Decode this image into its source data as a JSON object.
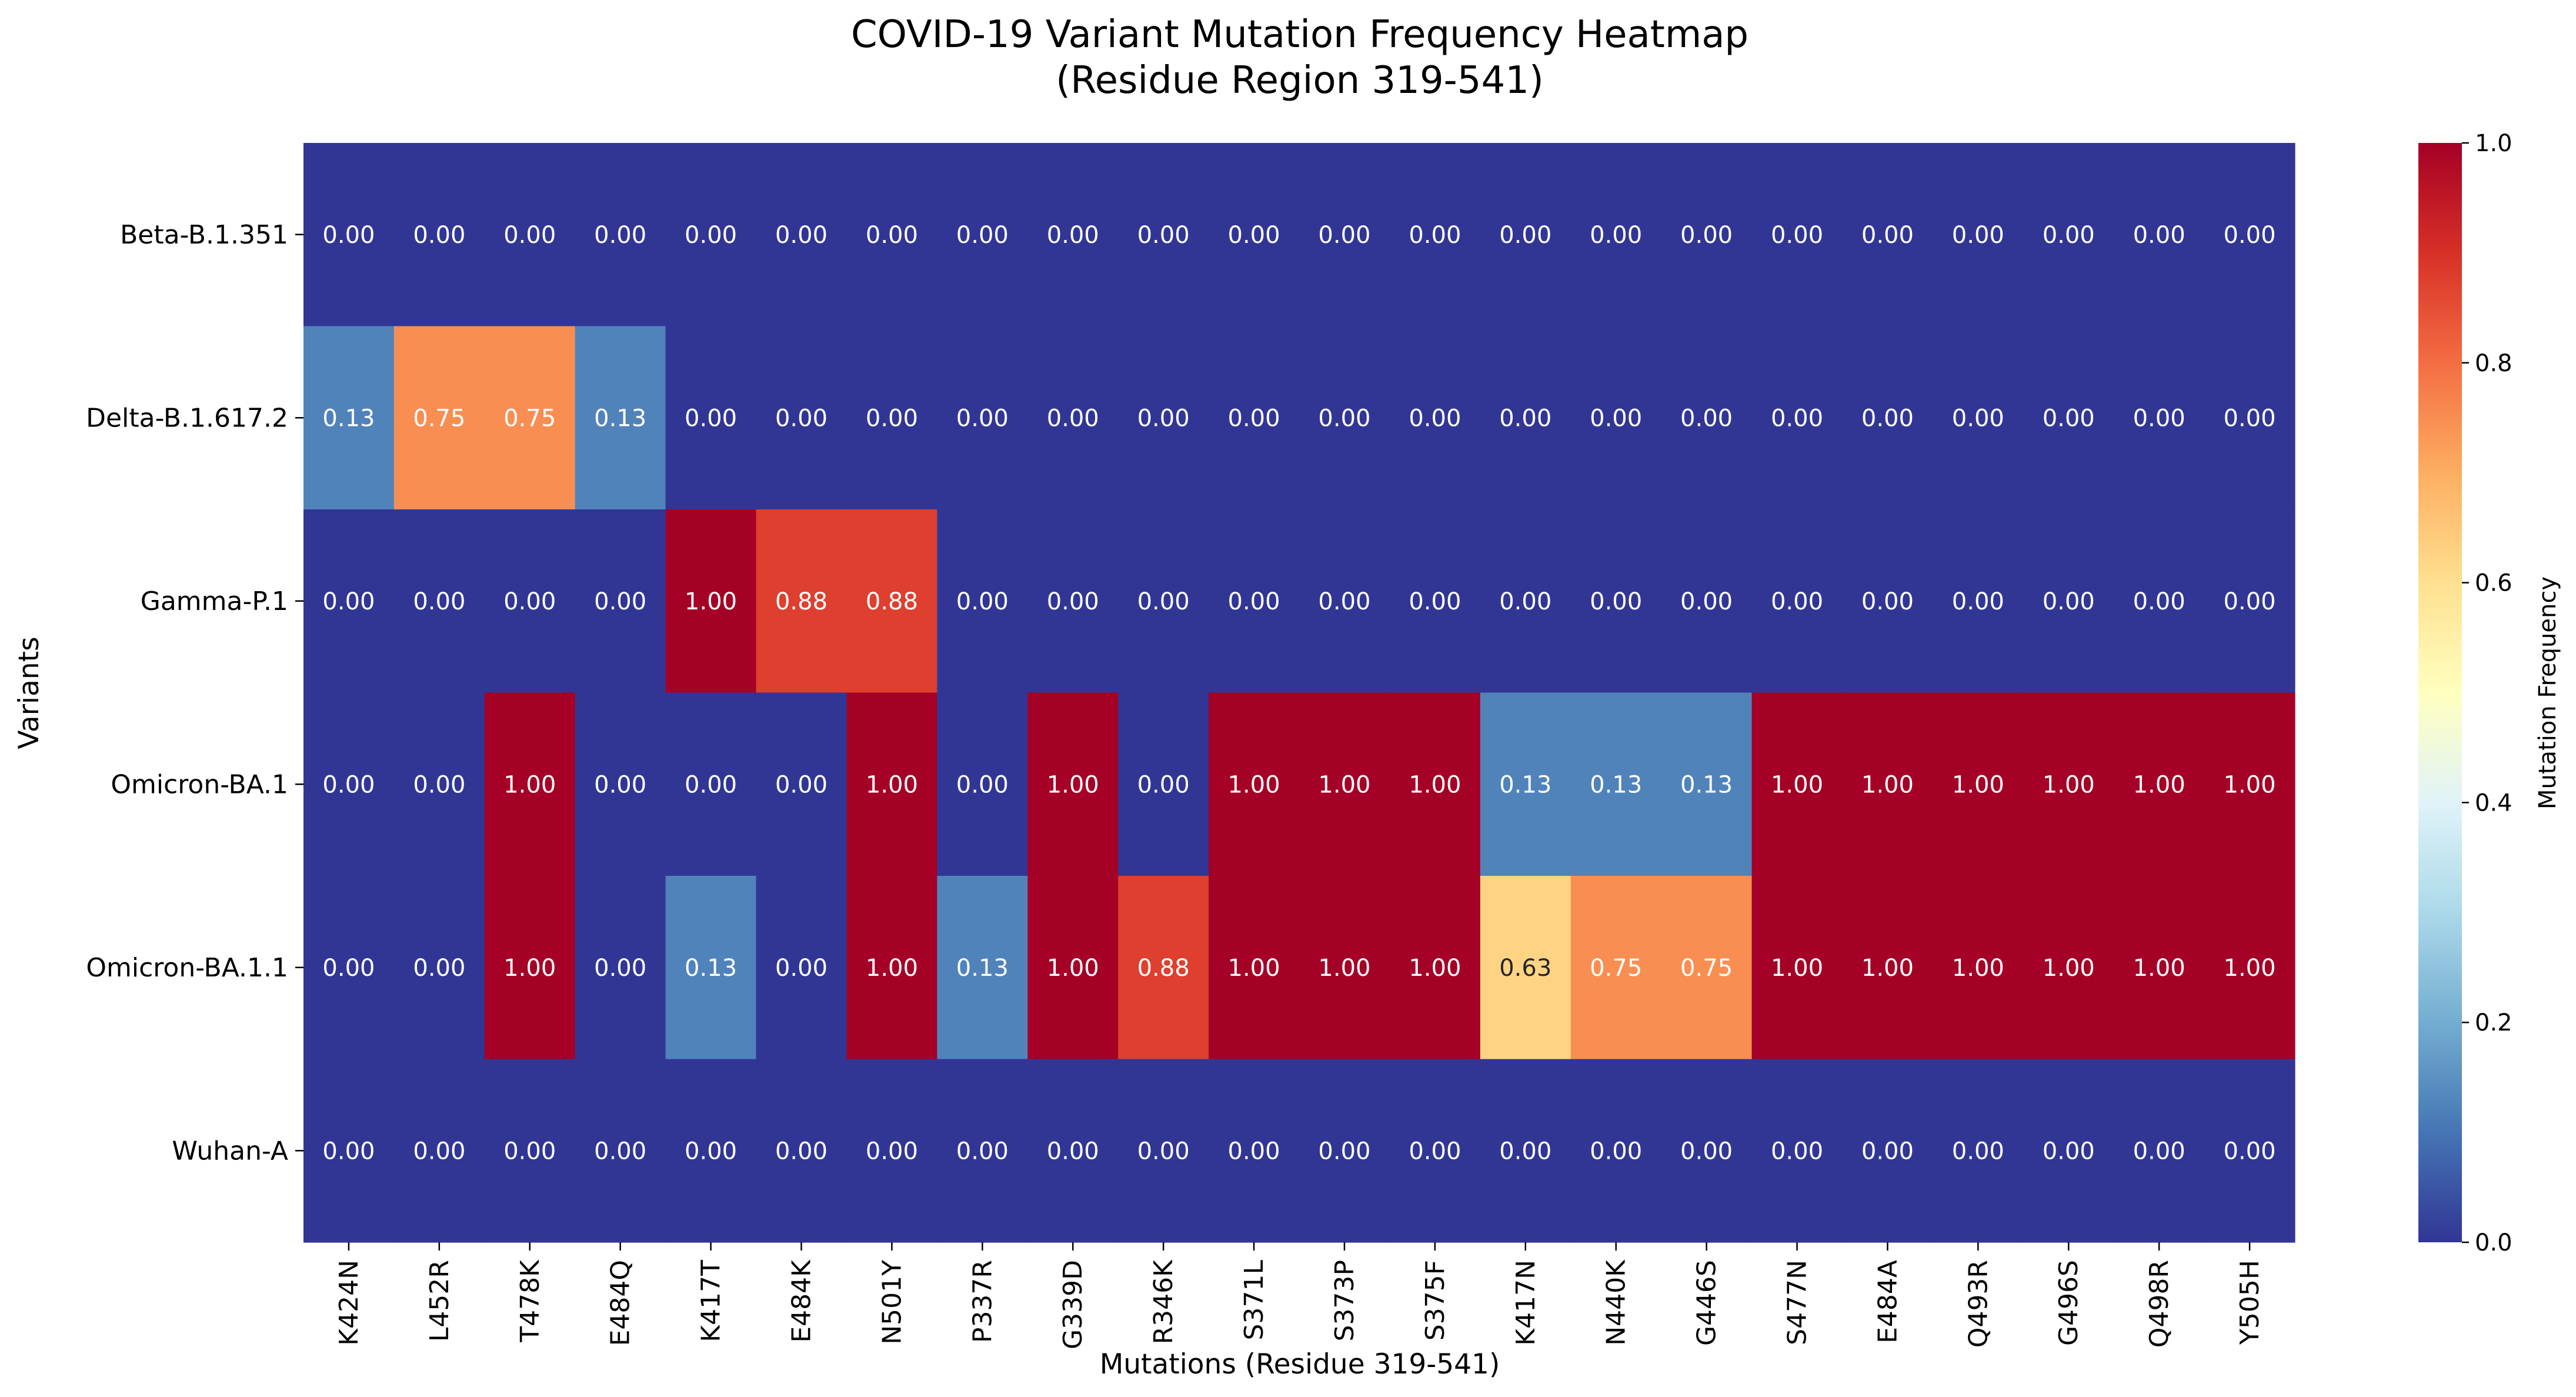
{
  "chart_data": {
    "type": "heatmap",
    "title": "COVID-19 Variant Mutation Frequency Heatmap",
    "subtitle": "(Residue Region 319-541)",
    "xlabel": "Mutations (Residue 319-541)",
    "ylabel": "Variants",
    "colorbar_label": "Mutation Frequency",
    "colormap": "RdYlBu_r",
    "vmin": 0.0,
    "vmax": 1.0,
    "colorbar_ticks": [
      "0.0",
      "0.2",
      "0.4",
      "0.6",
      "0.8",
      "1.0"
    ],
    "columns": [
      "K424N",
      "L452R",
      "T478K",
      "E484Q",
      "K417T",
      "E484K",
      "N501Y",
      "P337R",
      "G339D",
      "R346K",
      "S371L",
      "S373P",
      "S375F",
      "K417N",
      "N440K",
      "G446S",
      "S477N",
      "E484A",
      "Q493R",
      "G496S",
      "Q498R",
      "Y505H"
    ],
    "rows": [
      "Beta-B.1.351",
      "Delta-B.1.617.2",
      "Gamma-P.1",
      "Omicron-BA.1",
      "Omicron-BA.1.1",
      "Wuhan-A"
    ],
    "values": [
      [
        0,
        0,
        0,
        0,
        0,
        0,
        0,
        0,
        0,
        0,
        0,
        0,
        0,
        0,
        0,
        0,
        0,
        0,
        0,
        0,
        0,
        0
      ],
      [
        0.125,
        0.75,
        0.75,
        0.125,
        0,
        0,
        0,
        0,
        0,
        0,
        0,
        0,
        0,
        0,
        0,
        0,
        0,
        0,
        0,
        0,
        0,
        0
      ],
      [
        0,
        0,
        0,
        0,
        1.0,
        0.875,
        0.875,
        0,
        0,
        0,
        0,
        0,
        0,
        0,
        0,
        0,
        0,
        0,
        0,
        0,
        0,
        0
      ],
      [
        0,
        0,
        1.0,
        0,
        0,
        0,
        1.0,
        0,
        1.0,
        0,
        1.0,
        1.0,
        1.0,
        0.125,
        0.125,
        0.125,
        1.0,
        1.0,
        1.0,
        1.0,
        1.0,
        1.0
      ],
      [
        0,
        0,
        1.0,
        0,
        0.125,
        0,
        1.0,
        0.125,
        1.0,
        0.875,
        1.0,
        1.0,
        1.0,
        0.625,
        0.75,
        0.75,
        1.0,
        1.0,
        1.0,
        1.0,
        1.0,
        1.0
      ],
      [
        0,
        0,
        0,
        0,
        0,
        0,
        0,
        0,
        0,
        0,
        0,
        0,
        0,
        0,
        0,
        0,
        0,
        0,
        0,
        0,
        0,
        0
      ]
    ],
    "annotation_format": "0.00"
  }
}
